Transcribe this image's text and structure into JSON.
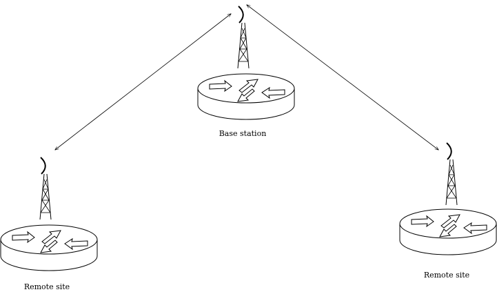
{
  "labels": {
    "base_station": "Base station",
    "remote_site_left": "Remote site",
    "remote_site_right": "Remote site"
  },
  "colors": {
    "stroke": "#000000",
    "background": "#ffffff"
  },
  "nodes": [
    {
      "id": "base",
      "kind": "router-with-tower",
      "label_key": "base_station"
    },
    {
      "id": "remote-left",
      "kind": "router-with-tower",
      "label_key": "remote_site_left"
    },
    {
      "id": "remote-right",
      "kind": "router-with-tower",
      "label_key": "remote_site_right"
    }
  ],
  "links": [
    {
      "from": "base",
      "to": "remote-left",
      "style": "double-arrow"
    },
    {
      "from": "base",
      "to": "remote-right",
      "style": "double-arrow"
    }
  ]
}
